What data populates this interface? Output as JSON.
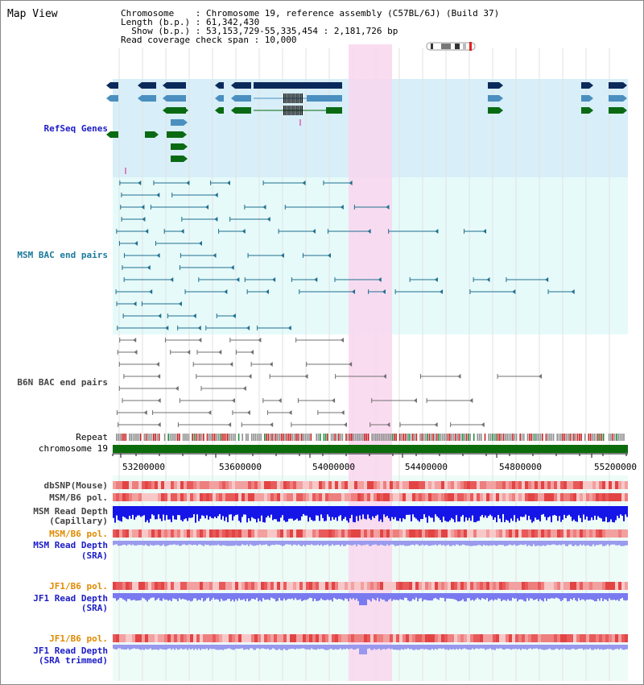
{
  "title": "Map View",
  "info": {
    "line1": "Chromosome    : Chromosome 19, reference assembly (C57BL/6J) (Build 37)",
    "line2": "Length (b.p.) : 61,342,430",
    "line3": "  Show (b.p.) : 53,153,729-55,335,454 : 2,181,726 bp",
    "line4": "Read coverage check span : 10,000"
  },
  "tracks": {
    "refseq": "RefSeq Genes",
    "msm_bac": "MSM BAC end pairs",
    "b6n_bac": "B6N BAC end pairs",
    "repeat": "Repeat",
    "chromosome": "chromosome 19",
    "dbsnp": "dbSNP(Mouse)",
    "msm_b6_pol": "MSM/B6 pol.",
    "msm_depth_cap_1": "MSM Read Depth",
    "msm_depth_cap_2": "(Capillary)",
    "msm_b6_pol2": "MSM/B6 pol.",
    "msm_depth_sra_1": "MSM Read Depth",
    "msm_depth_sra_2": "(SRA)",
    "jf1_pol1": "JF1/B6 pol.",
    "jf1_depth_1": "JF1 Read Depth",
    "jf1_depth_2": "(SRA)",
    "jf1_pol2": "JF1/B6 pol.",
    "jf1_depth_trim_1": "JF1 Read Depth",
    "jf1_depth_trim_2": "(SRA trimmed)"
  },
  "axis_ticks": [
    "53200000",
    "53600000",
    "54000000",
    "54400000",
    "54800000",
    "55200000"
  ],
  "colors": {
    "refseq_bg": "#d8eef8",
    "msm_bg": "#e6fafa",
    "highlight": "#f9d6ee",
    "gene_dark": "#0b2a5a",
    "gene_mid": "#4a8fc0",
    "gene_green": "#0a6a14",
    "msm_line": "#1f6f8f",
    "b6n_line": "#707070",
    "chrom": "#0c6c0c"
  }
}
